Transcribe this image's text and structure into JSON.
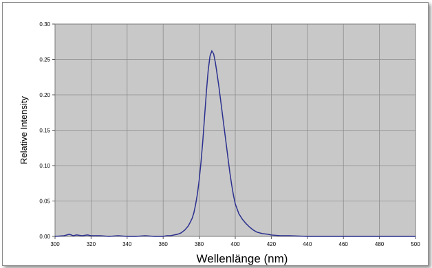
{
  "chart_data": {
    "type": "line",
    "title": "",
    "xlabel": "Wellenlänge (nm)",
    "ylabel": "Relative Intensity",
    "xlim": [
      300,
      500
    ],
    "ylim": [
      0,
      0.3
    ],
    "xticks": [
      300,
      320,
      340,
      360,
      380,
      400,
      420,
      440,
      460,
      480,
      500
    ],
    "yticks": [
      0.0,
      0.05,
      0.1,
      0.15,
      0.2,
      0.25,
      0.3
    ],
    "xtick_labels": [
      "300",
      "320",
      "340",
      "360",
      "380",
      "400",
      "420",
      "440",
      "460",
      "480",
      "500"
    ],
    "ytick_labels": [
      "0.00",
      "0.05",
      "0.10",
      "0.15",
      "0.20",
      "0.25",
      "0.30"
    ],
    "grid": true,
    "legend": false,
    "plot_background": "#c8c8c8",
    "line_color": "#2b2f8f",
    "series": [
      {
        "x": [
          300,
          305,
          308,
          310,
          312,
          315,
          318,
          320,
          325,
          330,
          335,
          340,
          345,
          350,
          355,
          360,
          362,
          364,
          366,
          368,
          370,
          372,
          374,
          376,
          377,
          378,
          379,
          380,
          381,
          382,
          383,
          384,
          385,
          386,
          387,
          388,
          389,
          390,
          391,
          392,
          393,
          394,
          395,
          396,
          397,
          398,
          399,
          400,
          402,
          404,
          406,
          408,
          410,
          412,
          415,
          418,
          420,
          425,
          430,
          440,
          450,
          460,
          470,
          480,
          490,
          500
        ],
        "values": [
          0.0,
          0.001,
          0.003,
          0.001,
          0.002,
          0.001,
          0.002,
          0.001,
          0.001,
          0.0,
          0.001,
          0.0,
          0.0,
          0.001,
          0.0,
          0.0,
          0.001,
          0.001,
          0.002,
          0.003,
          0.005,
          0.009,
          0.015,
          0.025,
          0.033,
          0.045,
          0.06,
          0.08,
          0.105,
          0.135,
          0.17,
          0.205,
          0.235,
          0.255,
          0.262,
          0.258,
          0.245,
          0.228,
          0.21,
          0.19,
          0.17,
          0.15,
          0.13,
          0.11,
          0.09,
          0.073,
          0.058,
          0.046,
          0.032,
          0.024,
          0.018,
          0.013,
          0.009,
          0.006,
          0.004,
          0.003,
          0.002,
          0.001,
          0.001,
          0.0,
          0.0,
          0.0,
          0.0,
          0.0,
          0.0,
          0.0
        ]
      }
    ]
  }
}
